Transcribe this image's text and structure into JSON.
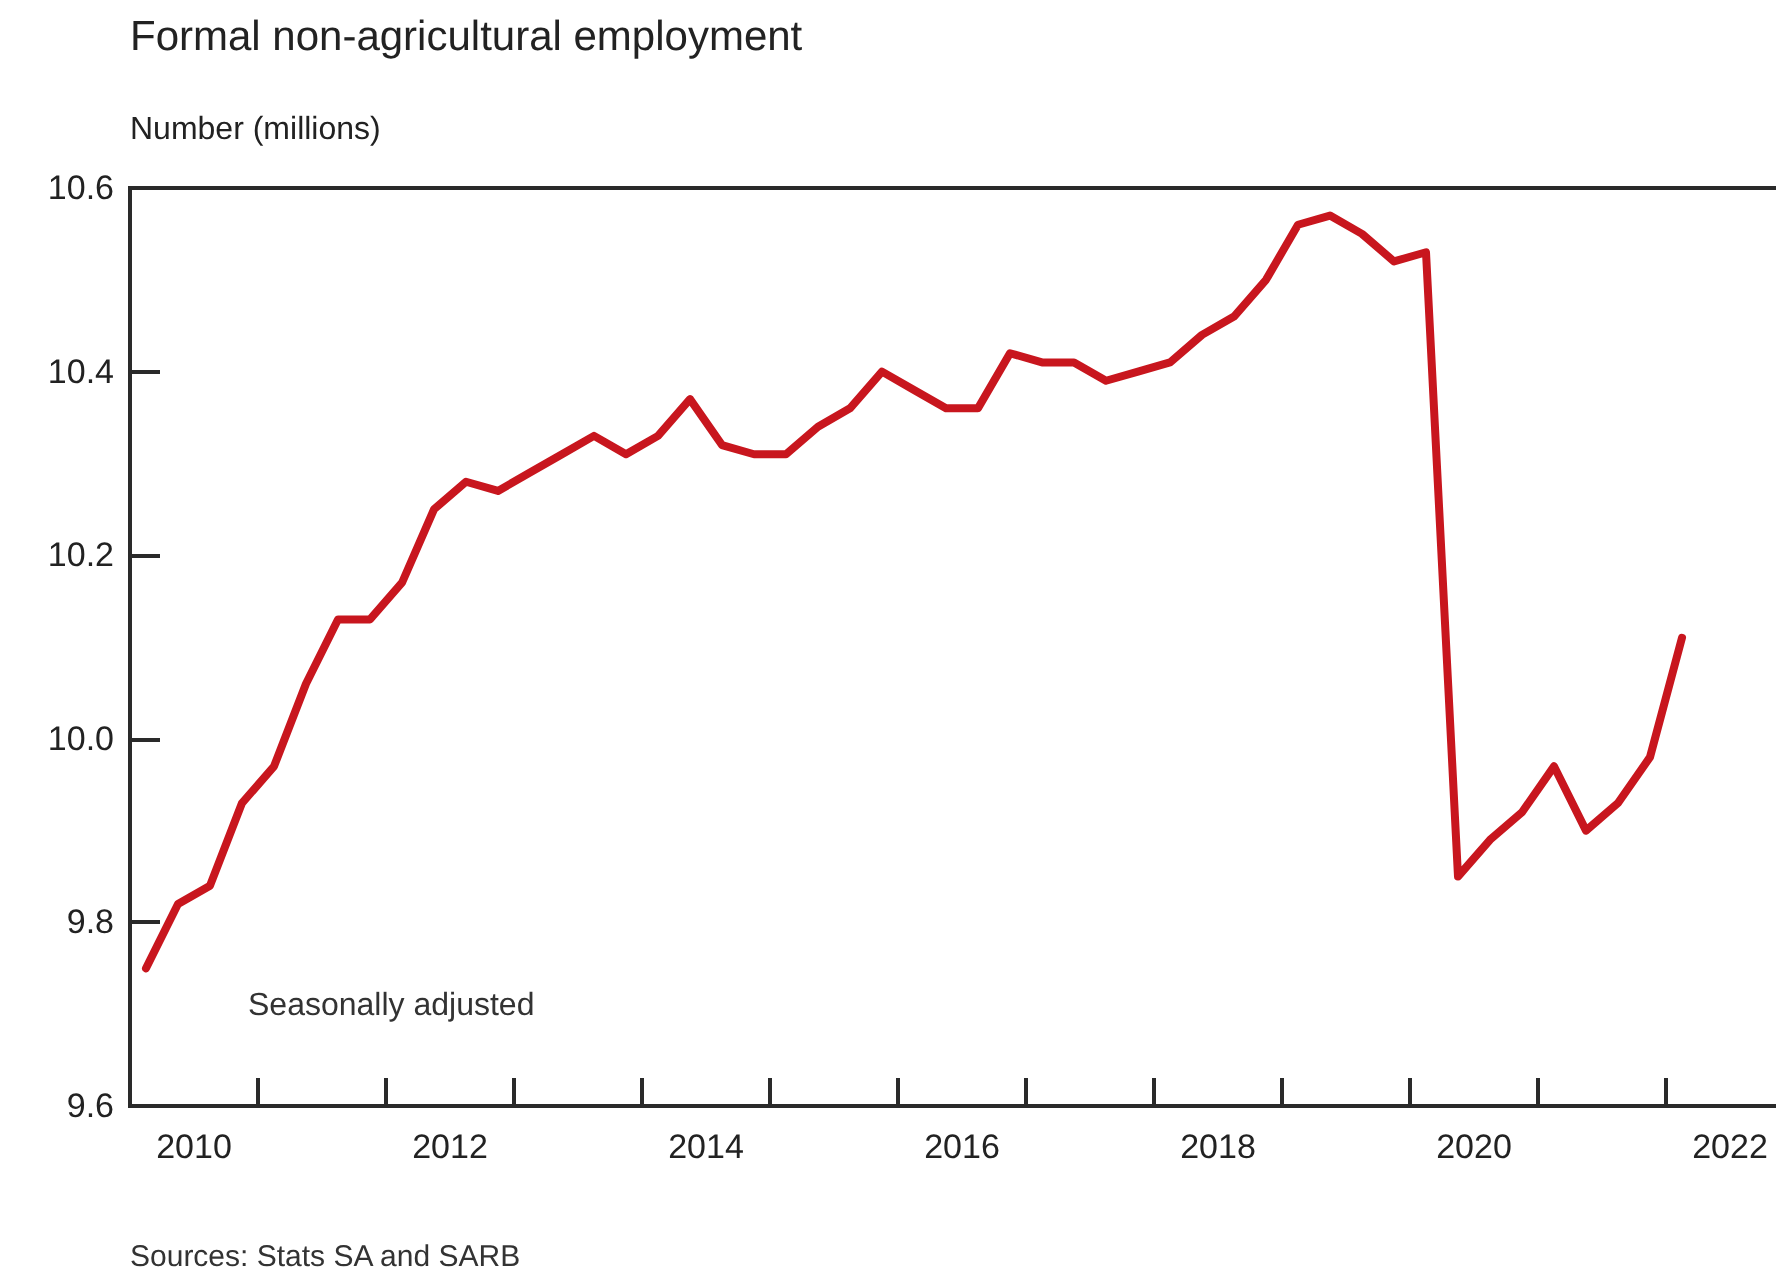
{
  "chart_data": {
    "type": "line",
    "title": "Formal non-agricultural employment",
    "ylabel": "Number (millions)",
    "annotations": [
      "Seasonally adjusted",
      "Sources: Stats SA and SARB"
    ],
    "x": [
      2010.125,
      2010.375,
      2010.625,
      2010.875,
      2011.125,
      2011.375,
      2011.625,
      2011.875,
      2012.125,
      2012.375,
      2012.625,
      2012.875,
      2013.125,
      2013.375,
      2013.625,
      2013.875,
      2014.125,
      2014.375,
      2014.625,
      2014.875,
      2015.125,
      2015.375,
      2015.625,
      2015.875,
      2016.125,
      2016.375,
      2016.625,
      2016.875,
      2017.125,
      2017.375,
      2017.625,
      2017.875,
      2018.125,
      2018.375,
      2018.625,
      2018.875,
      2019.125,
      2019.375,
      2019.625,
      2019.875,
      2020.125,
      2020.375,
      2020.625,
      2020.875,
      2021.125,
      2021.375,
      2021.625,
      2021.875,
      2022.125
    ],
    "series": [
      {
        "color": "#c8161e",
        "values": [
          9.75,
          9.82,
          9.84,
          9.93,
          9.97,
          10.06,
          10.13,
          10.13,
          10.17,
          10.25,
          10.28,
          10.27,
          10.29,
          10.31,
          10.33,
          10.31,
          10.33,
          10.37,
          10.32,
          10.31,
          10.31,
          10.34,
          10.36,
          10.4,
          10.38,
          10.36,
          10.36,
          10.42,
          10.41,
          10.41,
          10.39,
          10.4,
          10.41,
          10.44,
          10.46,
          10.5,
          10.56,
          10.57,
          10.55,
          10.52,
          10.53,
          9.85,
          9.89,
          9.92,
          9.97,
          9.9,
          9.93,
          9.98,
          10.11
        ]
      }
    ],
    "xlim": [
      2010,
      2023
    ],
    "xticks": [
      {
        "value": 2010.5,
        "label": "2010"
      },
      {
        "value": 2011,
        "label": null
      },
      {
        "value": 2012,
        "label": null
      },
      {
        "value": 2012.5,
        "label": "2012"
      },
      {
        "value": 2013,
        "label": null
      },
      {
        "value": 2014,
        "label": null
      },
      {
        "value": 2014.5,
        "label": "2014"
      },
      {
        "value": 2015,
        "label": null
      },
      {
        "value": 2016,
        "label": null
      },
      {
        "value": 2016.5,
        "label": "2016"
      },
      {
        "value": 2017,
        "label": null
      },
      {
        "value": 2018,
        "label": null
      },
      {
        "value": 2018.5,
        "label": "2018"
      },
      {
        "value": 2019,
        "label": null
      },
      {
        "value": 2020,
        "label": null
      },
      {
        "value": 2020.5,
        "label": "2020"
      },
      {
        "value": 2021,
        "label": null
      },
      {
        "value": 2022,
        "label": null
      },
      {
        "value": 2022.5,
        "label": "2022"
      }
    ],
    "ylim": [
      9.6,
      10.6
    ],
    "yticks": [
      9.6,
      9.8,
      {
        "value": 10,
        "label": "10.0"
      },
      10.2,
      10.4,
      10.6
    ],
    "line_style": "solid",
    "marker": "none",
    "grid": false
  }
}
